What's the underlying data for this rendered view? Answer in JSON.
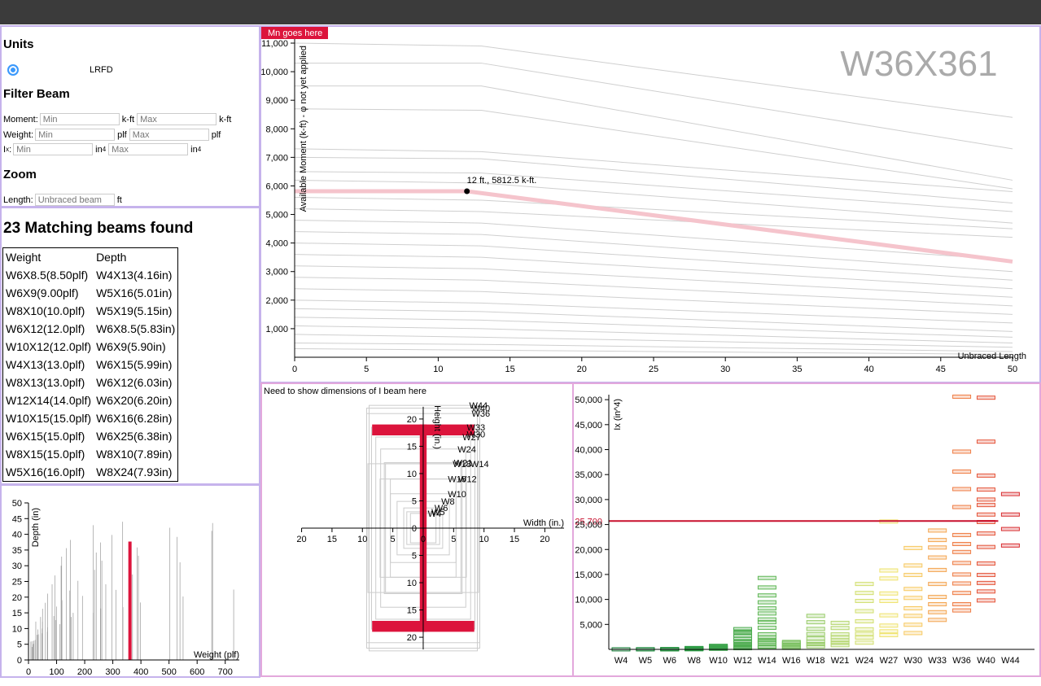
{
  "units": {
    "title": "Units",
    "option": "LRFD"
  },
  "filter": {
    "title": "Filter Beam",
    "moment": {
      "label": "Moment:",
      "min": "Min",
      "max": "Max",
      "unit": "k-ft"
    },
    "weight": {
      "label": "Weight:",
      "min": "Min",
      "max": "Max",
      "unit": "plf"
    },
    "ix": {
      "label": "I",
      "label_sub": "x",
      "label_colon": ":",
      "min": "Min",
      "max": "Max",
      "unit": "in",
      "unit_sup": "4"
    }
  },
  "zoom": {
    "title": "Zoom",
    "length_label": "Length:",
    "placeholder": "Unbraced beam",
    "unit": "ft"
  },
  "results": {
    "title": "23 Matching beams found",
    "table": {
      "header": [
        "Weight",
        "Depth"
      ],
      "rows": [
        [
          "W6X8.5(8.50plf)",
          "W4X13(4.16in)"
        ],
        [
          "W6X9(9.00plf)",
          "W5X16(5.01in)"
        ],
        [
          "W8X10(10.0plf)",
          "W5X19(5.15in)"
        ],
        [
          "W6X12(12.0plf)",
          "W6X8.5(5.83in)"
        ],
        [
          "W10X12(12.0plf)",
          "W6X9(5.90in)"
        ],
        [
          "W4X13(13.0plf)",
          "W6X15(5.99in)"
        ],
        [
          "W8X13(13.0plf)",
          "W6X12(6.03in)"
        ],
        [
          "W12X14(14.0plf)",
          "W6X20(6.20in)"
        ],
        [
          "W10X15(15.0plf)",
          "W6X16(6.28in)"
        ],
        [
          "W6X15(15.0plf)",
          "W6X25(6.38in)"
        ],
        [
          "W8X15(15.0plf)",
          "W8X10(7.89in)"
        ],
        [
          "W5X16(16.0plf)",
          "W8X24(7.93in)"
        ]
      ]
    }
  },
  "moment_chart": {
    "type": "line",
    "badge": "Mn goes here",
    "title": "W36X361",
    "ylabel": "Available Moment (k-ft) - φ not yet applied",
    "xlabel": "Unbraced Length",
    "annotation": "12 ft., 5812.5 k-ft.",
    "xlim": [
      0,
      50
    ],
    "ylim": [
      0,
      11000
    ],
    "xticks": [
      0,
      5,
      10,
      15,
      20,
      25,
      30,
      35,
      40,
      45,
      50
    ],
    "yticks": [
      {
        "value": 1000,
        "label": "1,000"
      },
      {
        "value": 2000,
        "label": "2,000"
      },
      {
        "value": 3000,
        "label": "3,000"
      },
      {
        "value": 4000,
        "label": "4,000"
      },
      {
        "value": 5000,
        "label": "5,000"
      },
      {
        "value": 6000,
        "label": "6,000"
      },
      {
        "value": 7000,
        "label": "7,000"
      },
      {
        "value": 8000,
        "label": "8,000"
      },
      {
        "value": 9000,
        "label": "9,000"
      },
      {
        "value": 10000,
        "label": "10,000"
      },
      {
        "value": 11000,
        "label": "11,000"
      }
    ],
    "x": [
      0,
      12,
      50
    ],
    "series": [
      {
        "color": "#f5c4cc",
        "values": [
          5812.5,
          5812.5,
          3350
        ]
      }
    ],
    "point": {
      "x": 12,
      "y": 5812.5
    },
    "background": {
      "color": "#cfcfcf",
      "x": [
        0,
        13,
        50
      ],
      "values": [
        [
          11000,
          10900,
          8400
        ],
        [
          10300,
          10300,
          7300
        ],
        [
          9500,
          9500,
          6200
        ],
        [
          8700,
          8650,
          5900
        ],
        [
          7300,
          7200,
          5800
        ],
        [
          7000,
          6950,
          5400
        ],
        [
          6500,
          6450,
          5100
        ],
        [
          6200,
          6100,
          4700
        ],
        [
          5600,
          5500,
          4500
        ],
        [
          5200,
          5100,
          4200
        ],
        [
          4800,
          4700,
          3400
        ],
        [
          4400,
          4300,
          3000
        ],
        [
          4000,
          3900,
          2700
        ],
        [
          3600,
          3500,
          2400
        ],
        [
          3200,
          3100,
          2100
        ],
        [
          2800,
          2700,
          1800
        ],
        [
          2400,
          2300,
          1500
        ],
        [
          2000,
          1900,
          1200
        ],
        [
          1700,
          1600,
          900
        ],
        [
          1400,
          1300,
          700
        ],
        [
          1100,
          1000,
          500
        ],
        [
          800,
          700,
          350
        ],
        [
          500,
          450,
          200
        ],
        [
          300,
          250,
          100
        ]
      ]
    }
  },
  "depth_chart": {
    "type": "bar",
    "xlabel": "Weight (plf)",
    "ylabel": "Depth (in)",
    "xlim": [
      0,
      750
    ],
    "ylim": [
      0,
      50
    ],
    "xticks": [
      0,
      100,
      200,
      300,
      400,
      500,
      600,
      700
    ],
    "yticks": [
      0,
      5,
      10,
      15,
      20,
      25,
      30,
      35,
      40,
      45,
      50
    ],
    "color": "#999999",
    "x": [
      8.5,
      9,
      13,
      15,
      16,
      19,
      20,
      25,
      31,
      35,
      48,
      67,
      33,
      49,
      68,
      112,
      26,
      50,
      96,
      152,
      230,
      336,
      43,
      90,
      159,
      257,
      398,
      550,
      730,
      50,
      100,
      60,
      119,
      192,
      311,
      68,
      147,
      275,
      84,
      176,
      370,
      94,
      235,
      539,
      116,
      261,
      391,
      118,
      241,
      387,
      135,
      256,
      529,
      652,
      149,
      297,
      503,
      655,
      230,
      335
    ],
    "values": [
      5.83,
      5.9,
      4.16,
      5.99,
      5.01,
      5.15,
      6.2,
      6.38,
      8,
      8.12,
      8.5,
      9,
      9.73,
      10,
      10.4,
      11.4,
      12.2,
      12.2,
      12.7,
      13.7,
      15,
      16.8,
      13.7,
      14,
      15,
      16.4,
      18.3,
      20.2,
      22.4,
      16.3,
      17,
      18.2,
      19,
      20.4,
      22.3,
      21.1,
      22.1,
      24.1,
      24.1,
      25.2,
      27.2,
      26.9,
      28.7,
      31.1,
      30,
      31.6,
      33.2,
      32.9,
      34.2,
      35.8,
      35.6,
      37.4,
      39.2,
      41.1,
      38.2,
      39.8,
      42.1,
      43.6,
      42.9,
      44
    ],
    "highlight": {
      "x": 361,
      "y": 37.7,
      "color": "#dc143c"
    }
  },
  "section_chart": {
    "type": "section",
    "note": "Need to show dimensions of I beam here",
    "xlabel": "Width (in.)",
    "ylabel": "Height (in.)",
    "xlim": [
      -26.5,
      24.5
    ],
    "ylim": [
      -26.4,
      26.4
    ],
    "xticks": [
      {
        "value": -20,
        "label": "20"
      },
      {
        "value": -15,
        "label": "15"
      },
      {
        "value": -10,
        "label": "10"
      },
      {
        "value": -5,
        "label": "5"
      },
      0,
      5,
      10,
      15,
      20
    ],
    "yticks": [
      20,
      15,
      10,
      5,
      0,
      {
        "value": -5,
        "label": "5"
      },
      {
        "value": -10,
        "label": "10"
      },
      {
        "value": -15,
        "label": "15"
      },
      {
        "value": -20,
        "label": "20"
      }
    ],
    "shapes": [
      {
        "label": "W44",
        "width": 8.9,
        "depth": 22.5
      },
      {
        "label": "W40",
        "width": 9.3,
        "depth": 22
      },
      {
        "label": "W36",
        "width": 9.3,
        "depth": 21
      },
      {
        "label": "W33",
        "width": 8.5,
        "depth": 18.5
      },
      {
        "label": "W30",
        "width": 8.5,
        "depth": 17.2
      },
      {
        "label": "W27",
        "width": 7.8,
        "depth": 16.7
      },
      {
        "label": "W24",
        "width": 7,
        "depth": 14.5
      },
      {
        "label": "W21",
        "width": 6.4,
        "depth": 12
      },
      {
        "label": "W18",
        "width": 6.2,
        "depth": 11.8
      },
      {
        "label": "W14",
        "width": 9.1,
        "depth": 11.8
      },
      {
        "label": "W16",
        "width": 5.4,
        "depth": 9
      },
      {
        "label": "W12",
        "width": 7.1,
        "depth": 9
      },
      {
        "label": "W10",
        "width": 5.4,
        "depth": 6.3
      },
      {
        "label": "W8",
        "width": 4.3,
        "depth": 4.9
      },
      {
        "label": "W6",
        "width": 3.2,
        "depth": 3.7
      },
      {
        "label": "W5",
        "width": 2.7,
        "depth": 3
      },
      {
        "label": "W4",
        "width": 2.1,
        "depth": 2.7
      }
    ],
    "beam": {
      "half_width": 8.4,
      "half_depth": 19,
      "flange_thickness": 2,
      "web_thickness": 1.12,
      "color": "#dc143c"
    }
  },
  "ix_chart": {
    "type": "strips",
    "ylabel": "Ix (in^4)",
    "ylim": [
      0,
      51000
    ],
    "yticks": [
      {
        "value": 5000,
        "label": "5,000"
      },
      {
        "value": 10000,
        "label": "10,000"
      },
      {
        "value": 15000,
        "label": "15,000"
      },
      {
        "value": 20000,
        "label": "20,000"
      },
      {
        "value": 25000,
        "label": "25,000"
      },
      {
        "value": 30000,
        "label": "30,000"
      },
      {
        "value": 35000,
        "label": "35,000"
      },
      {
        "value": 40000,
        "label": "40,000"
      },
      {
        "value": 45000,
        "label": "45,000"
      },
      {
        "value": 50000,
        "label": "50,000"
      }
    ],
    "categories": [
      "W4",
      "W5",
      "W6",
      "W8",
      "W10",
      "W12",
      "W14",
      "W16",
      "W18",
      "W21",
      "W24",
      "W27",
      "W30",
      "W33",
      "W36",
      "W40",
      "W44"
    ],
    "colors": [
      "#1a7f3a",
      "#1f8a3e",
      "#24913f",
      "#2b9a43",
      "#3aa34a",
      "#4dac4f",
      "#5fb655",
      "#7bc160",
      "#98cb69",
      "#b5d66f",
      "#d2df6f",
      "#efe36e",
      "#f7c960",
      "#f4a550",
      "#ef7c43",
      "#e5553a",
      "#d92f32"
    ],
    "values": [
      [
        11
      ],
      [
        15,
        26
      ],
      [
        17,
        30,
        41,
        54
      ],
      [
        30,
        61,
        82,
        110,
        184,
        228,
        272
      ],
      [
        118,
        209,
        341,
        455,
        623,
        716
      ],
      [
        238,
        391,
        597,
        833,
        1070,
        1430,
        1650,
        2140,
        2720,
        3270,
        3590,
        4060
      ],
      [
        385,
        573,
        1240,
        1530,
        1910,
        2400,
        3010,
        4330,
        5440,
        6000,
        7190,
        8210,
        9430,
        10800,
        12400,
        14300
      ],
      [
        301,
        448,
        659,
        954,
        1300,
        1490
      ],
      [
        612,
        1070,
        1530,
        2190,
        3060,
        4100,
        5440,
        6710
      ],
      [
        843,
        1330,
        1830,
        2420,
        3000,
        4280,
        5310
      ],
      [
        1350,
        2370,
        3100,
        4020,
        5630,
        7650,
        9700,
        11300,
        13100
      ],
      [
        2850,
        3620,
        4760,
        6820,
        9700,
        11200,
        14200,
        15800,
        25600
      ],
      [
        3270,
        4930,
        6710,
        8230,
        10300,
        12100,
        14900,
        16800,
        20300
      ],
      [
        5900,
        7450,
        9040,
        10500,
        13100,
        15900,
        18400,
        20400,
        21900,
        23800
      ],
      [
        7800,
        9040,
        11300,
        13200,
        15000,
        17300,
        19500,
        21100,
        22900,
        28500,
        32100,
        35600,
        39600,
        50600
      ],
      [
        9800,
        11600,
        13300,
        14900,
        17200,
        20500,
        23200,
        25500,
        27000,
        28900,
        30000,
        32000,
        34800,
        41600,
        50400
      ],
      [
        20800,
        24100,
        27000,
        31100
      ]
    ],
    "reference": {
      "value": 25700,
      "label": "25,700",
      "color": "#c8102e"
    }
  }
}
